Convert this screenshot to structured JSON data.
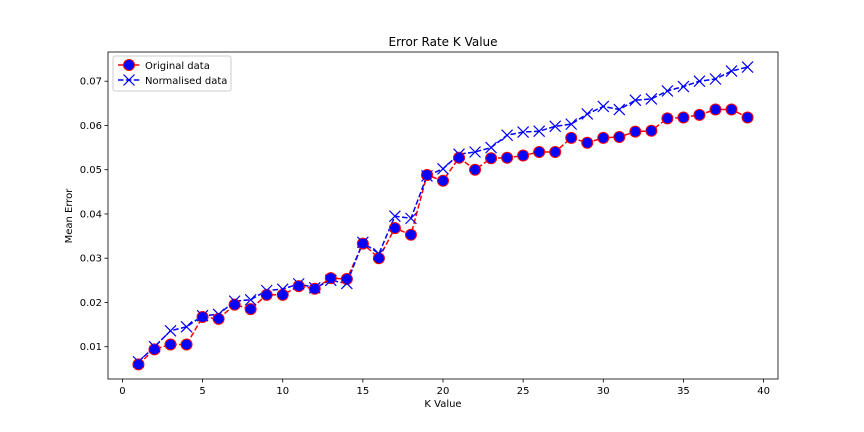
{
  "chart_data": {
    "type": "line",
    "title": "Error Rate K Value",
    "xlabel": "K Value",
    "ylabel": "Mean Error",
    "xlim": [
      -0.9,
      40.9
    ],
    "ylim": [
      0.0027,
      0.0766
    ],
    "xticks": [
      "0",
      "5",
      "10",
      "15",
      "20",
      "25",
      "30",
      "35",
      "40"
    ],
    "yticks": [
      "0.01",
      "0.02",
      "0.03",
      "0.04",
      "0.05",
      "0.06",
      "0.07"
    ],
    "grid": false,
    "legend_position": "top-left",
    "x": [
      1,
      2,
      3,
      4,
      5,
      6,
      7,
      8,
      9,
      10,
      11,
      12,
      13,
      14,
      15,
      16,
      17,
      18,
      19,
      20,
      21,
      22,
      23,
      24,
      25,
      26,
      27,
      28,
      29,
      30,
      31,
      32,
      33,
      34,
      35,
      36,
      37,
      38,
      39
    ],
    "series": [
      {
        "name": "Original data",
        "color": "#ff0000",
        "marker_color": "#0000ff",
        "line_style": "dashed",
        "marker": "circle",
        "values": [
          0.006,
          0.0094,
          0.0105,
          0.0105,
          0.0167,
          0.0163,
          0.0195,
          0.0185,
          0.0217,
          0.0217,
          0.0237,
          0.0231,
          0.0255,
          0.0253,
          0.0333,
          0.03,
          0.0368,
          0.0353,
          0.0488,
          0.0475,
          0.0527,
          0.05,
          0.0526,
          0.0527,
          0.0532,
          0.054,
          0.054,
          0.0572,
          0.0561,
          0.0572,
          0.0574,
          0.0586,
          0.0588,
          0.0616,
          0.0618,
          0.0624,
          0.0636,
          0.0636,
          0.0618
        ]
      },
      {
        "name": "Normalised data",
        "color": "#0000ff",
        "line_style": "dashed",
        "marker": "x",
        "values": [
          0.0066,
          0.01,
          0.0136,
          0.0145,
          0.017,
          0.0173,
          0.0203,
          0.0206,
          0.0227,
          0.023,
          0.0242,
          0.0233,
          0.025,
          0.0243,
          0.0336,
          0.031,
          0.0395,
          0.039,
          0.0486,
          0.0502,
          0.0535,
          0.054,
          0.055,
          0.0578,
          0.0585,
          0.0587,
          0.0598,
          0.0603,
          0.0626,
          0.0643,
          0.0636,
          0.0657,
          0.066,
          0.0678,
          0.0688,
          0.07,
          0.0705,
          0.0723,
          0.0732
        ]
      }
    ]
  }
}
